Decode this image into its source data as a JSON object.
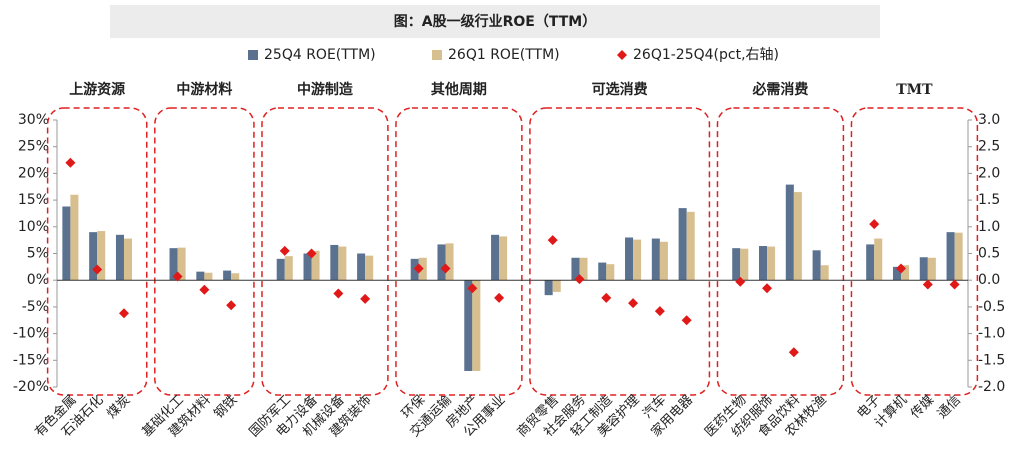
{
  "chart_data": {
    "type": "bar",
    "title": "图：A股一级行业ROE（TTM）",
    "groups": [
      "上游资源",
      "中游材料",
      "中游制造",
      "其他周期",
      "可选消费",
      "必需消费",
      "TMT"
    ],
    "categories": [
      "有色金属",
      "石油石化",
      "煤炭",
      null,
      "基础化工",
      "建筑材料",
      "钢铁",
      null,
      "国防军工",
      "电力设备",
      "机械设备",
      "建筑装饰",
      null,
      "环保",
      "交通运输",
      "房地产",
      "公用事业",
      null,
      "商贸零售",
      "社会服务",
      "轻工制造",
      "美容护理",
      "汽车",
      "家用电器",
      null,
      "医药生物",
      "纺织服饰",
      "食品饮料",
      "农林牧渔",
      null,
      "电子",
      "计算机",
      "传媒",
      "通信"
    ],
    "series": [
      {
        "name": "25Q4 ROE(TTM)",
        "color": "#5a7290",
        "values": [
          13.8,
          9.0,
          8.5,
          null,
          6.0,
          1.6,
          1.8,
          null,
          4.0,
          5.0,
          6.6,
          5.0,
          null,
          4.0,
          6.7,
          -17.0,
          8.5,
          null,
          -2.8,
          4.2,
          3.3,
          8.0,
          7.8,
          13.5,
          null,
          6.0,
          6.4,
          17.9,
          5.6,
          null,
          6.7,
          2.5,
          4.3,
          9.0
        ]
      },
      {
        "name": "26Q1 ROE(TTM)",
        "color": "#d8bf90",
        "values": [
          16.0,
          9.2,
          7.8,
          null,
          6.1,
          1.4,
          1.3,
          null,
          4.5,
          5.5,
          6.3,
          4.6,
          null,
          4.2,
          6.9,
          -17.0,
          8.2,
          null,
          -2.2,
          4.2,
          3.0,
          7.6,
          7.2,
          12.8,
          null,
          5.9,
          6.3,
          16.5,
          2.8,
          null,
          7.8,
          2.8,
          4.2,
          8.9
        ]
      },
      {
        "name": "26Q1-25Q4(pct,右轴)",
        "color": "#e01818",
        "axis": "y2",
        "marker": "diamond",
        "values": [
          2.2,
          0.2,
          -0.62,
          null,
          0.07,
          -0.18,
          -0.47,
          null,
          0.55,
          0.5,
          -0.25,
          -0.35,
          null,
          0.22,
          0.22,
          -0.15,
          -0.33,
          null,
          0.75,
          0.02,
          -0.33,
          -0.43,
          -0.58,
          -0.75,
          null,
          -0.03,
          -0.15,
          -1.35,
          null,
          null,
          1.05,
          0.22,
          -0.08,
          -0.08
        ]
      }
    ],
    "ylim": [
      -20,
      30
    ],
    "yticks": [
      {
        "value": -20,
        "label": "-20%"
      },
      {
        "value": -15,
        "label": "-15%"
      },
      {
        "value": -10,
        "label": "-10%"
      },
      {
        "value": -5,
        "label": "-5%"
      },
      {
        "value": 0,
        "label": "0%"
      },
      {
        "value": 5,
        "label": "5%"
      },
      {
        "value": 10,
        "label": "10%"
      },
      {
        "value": 15,
        "label": "15%"
      },
      {
        "value": 20,
        "label": "20%"
      },
      {
        "value": 25,
        "label": "25%"
      },
      {
        "value": 30,
        "label": "30%"
      }
    ],
    "y2lim": [
      -2,
      3
    ],
    "y2ticks": [
      {
        "value": -2,
        "label": "-2.0"
      },
      {
        "value": -1.5,
        "label": "-1.5"
      },
      {
        "value": -1,
        "label": "-1.0"
      },
      {
        "value": -0.5,
        "label": "-0.5"
      },
      {
        "value": 0,
        "label": "0.0"
      },
      {
        "value": 0.5,
        "label": "0.5"
      },
      {
        "value": 1,
        "label": "1.0"
      },
      {
        "value": 1.5,
        "label": "1.5"
      },
      {
        "value": 2,
        "label": "2.0"
      },
      {
        "value": 2.5,
        "label": "2.5"
      },
      {
        "value": 3,
        "label": "3.0"
      }
    ],
    "group_box_color": "#e02020"
  }
}
